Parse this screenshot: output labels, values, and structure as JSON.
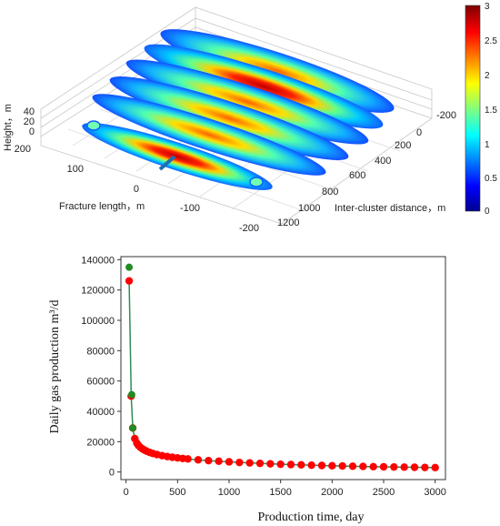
{
  "chart_data": [
    {
      "type": "3d-surface",
      "axes": {
        "z": {
          "label": "Height，m",
          "ticks": [
            "0",
            "20",
            "40"
          ]
        },
        "y": {
          "label": "Fracture length，m",
          "ticks": [
            "200",
            "100",
            "0",
            "-100",
            "-200"
          ]
        },
        "x": {
          "label": "Inter-cluster distance，m",
          "ticks": [
            "-200",
            "0",
            "200",
            "400",
            "600",
            "800",
            "1000",
            "1200"
          ]
        }
      },
      "colorbar": {
        "ticks": [
          "0",
          "0.5",
          "1",
          "1.5",
          "2",
          "2.5",
          "3"
        ],
        "range": [
          0,
          3
        ],
        "colors": [
          "#00008f",
          "#0000ff",
          "#00ffff",
          "#ffff00",
          "#ff0000",
          "#800000"
        ]
      },
      "fractures": {
        "count": 6,
        "front_fracture_peak": 3.0
      },
      "marker_color": "#1f6fb2"
    },
    {
      "type": "line",
      "xlabel": "Production time, day",
      "ylabel": "Daily gas production m³/d",
      "xlim": [
        -50,
        3100
      ],
      "ylim": [
        -5000,
        142000
      ],
      "xticks": [
        0,
        500,
        1000,
        1500,
        2000,
        2500,
        3000
      ],
      "yticks": [
        0,
        20000,
        40000,
        60000,
        80000,
        100000,
        120000,
        140000
      ],
      "series": [
        {
          "marker_color": "#ff0000",
          "line_color": "#2e8b57",
          "x": [
            30,
            50,
            65,
            85,
            105,
            120,
            140,
            160,
            180,
            200,
            230,
            260,
            300,
            350,
            400,
            450,
            500,
            550,
            600,
            700,
            800,
            900,
            1000,
            1100,
            1200,
            1300,
            1400,
            1500,
            1600,
            1700,
            1800,
            1900,
            2000,
            2100,
            2200,
            2300,
            2400,
            2500,
            2600,
            2700,
            2800,
            2900,
            3000
          ],
          "y": [
            126000,
            50000,
            29000,
            22000,
            19000,
            17500,
            16200,
            15200,
            14400,
            13700,
            12900,
            12200,
            11500,
            10800,
            10200,
            9700,
            9300,
            8900,
            8600,
            8000,
            7500,
            7100,
            6700,
            6300,
            6000,
            5700,
            5400,
            5100,
            4900,
            4700,
            4500,
            4300,
            4100,
            3950,
            3800,
            3650,
            3500,
            3400,
            3300,
            3200,
            3100,
            3000,
            2900
          ]
        },
        {
          "marker_color": "#228b22",
          "x": [
            30,
            55,
            65
          ],
          "y": [
            135000,
            51000,
            29000
          ]
        }
      ]
    }
  ]
}
